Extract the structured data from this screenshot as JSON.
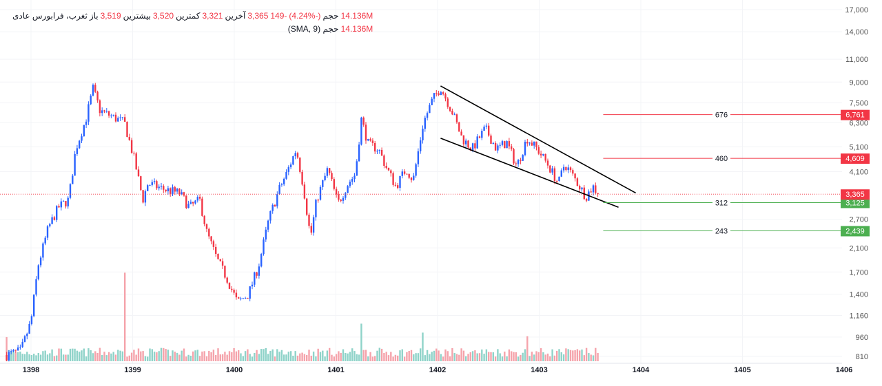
{
  "legend": {
    "symbol": "ثغرب، فرابورس عادی",
    "open_label": "باز",
    "open": "3,519",
    "high_label": "بیشترین",
    "high": "3,520",
    "low_label": "کمترین",
    "low": "3,321",
    "close_label": "آخرین",
    "close": "3,365",
    "change": "-149",
    "change_pct": "(-4.24%)",
    "volume_label": "حجم",
    "volume": "14.136M",
    "sma_label": "حجم (SMA, 9)",
    "sma_value": "14.136M"
  },
  "colors": {
    "up": "#2962ff",
    "down": "#f23645",
    "vol_up": "#8fd3c9",
    "vol_down": "#f5a3ab",
    "green": "#4caf50",
    "red": "#f23645"
  },
  "chart_data": {
    "type": "candlestick",
    "yscale": "log",
    "ylim": [
      810,
      17000
    ],
    "xlim": [
      1397.76,
      1406.1
    ],
    "y_ticks": [
      17000,
      14000,
      11000,
      9000,
      7500,
      6300,
      5100,
      4100,
      2700,
      2100,
      1700,
      1400,
      1160,
      960,
      810
    ],
    "y_tick_labels": [
      "17,000",
      "14,000",
      "11,000",
      "9,000",
      "7,500",
      "6,300",
      "5,100",
      "4,100",
      "2,700",
      "2,100",
      "1,700",
      "1,400",
      "1,160",
      "960",
      "810"
    ],
    "x_ticks": [
      1398,
      1399,
      1400,
      1401,
      1402,
      1403,
      1404,
      1405,
      1406
    ],
    "x_tick_labels": [
      "1398",
      "1399",
      "1400",
      "1401",
      "1402",
      "1403",
      "1404",
      "1405",
      "1406"
    ],
    "price_path": [
      [
        1397.76,
        820
      ],
      [
        1397.9,
        850
      ],
      [
        1398.0,
        1100
      ],
      [
        1398.07,
        1800
      ],
      [
        1398.17,
        2500
      ],
      [
        1398.27,
        3000
      ],
      [
        1398.37,
        3200
      ],
      [
        1398.44,
        5000
      ],
      [
        1398.54,
        6500
      ],
      [
        1398.61,
        8500
      ],
      [
        1398.68,
        7000
      ],
      [
        1398.78,
        6700
      ],
      [
        1398.92,
        6300
      ],
      [
        1399.02,
        4500
      ],
      [
        1399.1,
        3200
      ],
      [
        1399.15,
        3700
      ],
      [
        1399.32,
        3500
      ],
      [
        1399.46,
        3400
      ],
      [
        1399.56,
        3000
      ],
      [
        1399.66,
        3200
      ],
      [
        1399.73,
        2400
      ],
      [
        1399.83,
        1900
      ],
      [
        1399.93,
        1600
      ],
      [
        1400.03,
        1300
      ],
      [
        1400.14,
        1400
      ],
      [
        1400.24,
        1800
      ],
      [
        1400.34,
        2700
      ],
      [
        1400.44,
        3500
      ],
      [
        1400.51,
        4000
      ],
      [
        1400.61,
        5000
      ],
      [
        1400.68,
        3600
      ],
      [
        1400.75,
        2300
      ],
      [
        1400.81,
        3200
      ],
      [
        1400.92,
        4200
      ],
      [
        1401.02,
        3100
      ],
      [
        1401.12,
        3700
      ],
      [
        1401.19,
        4000
      ],
      [
        1401.25,
        6500
      ],
      [
        1401.32,
        5200
      ],
      [
        1401.42,
        5000
      ],
      [
        1401.49,
        4300
      ],
      [
        1401.59,
        3600
      ],
      [
        1401.69,
        4200
      ],
      [
        1401.76,
        3800
      ],
      [
        1401.86,
        6300
      ],
      [
        1401.95,
        7700
      ],
      [
        1402.03,
        8600
      ],
      [
        1402.14,
        7000
      ],
      [
        1402.24,
        5500
      ],
      [
        1402.34,
        5000
      ],
      [
        1402.47,
        6000
      ],
      [
        1402.58,
        5000
      ],
      [
        1402.68,
        5300
      ],
      [
        1402.78,
        4300
      ],
      [
        1402.88,
        5500
      ],
      [
        1402.98,
        5000
      ],
      [
        1403.08,
        4400
      ],
      [
        1403.19,
        3700
      ],
      [
        1403.25,
        4400
      ],
      [
        1403.36,
        3800
      ],
      [
        1403.46,
        3300
      ],
      [
        1403.53,
        3600
      ],
      [
        1403.58,
        3365
      ]
    ],
    "last_price": 3365,
    "last_price_label": "3,365",
    "trendlines": [
      {
        "name": "upper",
        "from": [
          1402.03,
          8700
        ],
        "to": [
          1403.95,
          3400
        ]
      },
      {
        "name": "lower",
        "from": [
          1402.03,
          5500
        ],
        "to": [
          1403.78,
          3000
        ]
      }
    ],
    "levels": [
      {
        "price": 6761,
        "price_label": "6,761",
        "label": "676",
        "color": "red",
        "start": 1403.63
      },
      {
        "price": 4609,
        "price_label": "4,609",
        "label": "460",
        "color": "red",
        "start": 1403.63
      },
      {
        "price": 3125,
        "price_label": "3,125",
        "label": "312",
        "color": "green",
        "start": 1403.63
      },
      {
        "price": 2439,
        "price_label": "2,439",
        "label": "243",
        "color": "green",
        "start": 1403.63
      }
    ],
    "volume_spikes": [
      [
        1397.76,
        0.27
      ],
      [
        1398.92,
        0.99
      ],
      [
        1401.25,
        0.42
      ],
      [
        1401.86,
        0.32
      ],
      [
        1402.88,
        0.28
      ]
    ]
  }
}
